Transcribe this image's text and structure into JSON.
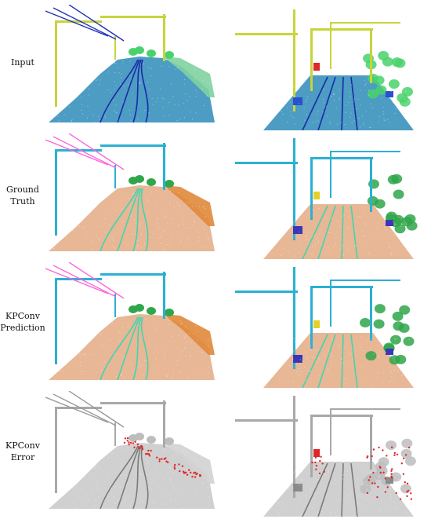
{
  "rows": [
    {
      "label_lines": [
        "Input"
      ],
      "scheme": "input"
    },
    {
      "label_lines": [
        "Ground",
        "Truth"
      ],
      "scheme": "gt"
    },
    {
      "label_lines": [
        "KPConv",
        "Prediction"
      ],
      "scheme": "pred"
    },
    {
      "label_lines": [
        "KPConv",
        "Error"
      ],
      "scheme": "error"
    }
  ],
  "colors": {
    "input": {
      "ground": "#2d8bb8",
      "rail": "#1a2aa8",
      "mast": "#c8d43a",
      "wire": "#2033b8",
      "veg": "#49d26b",
      "wall": "#7fd1a0",
      "sign": "#e0262a",
      "box": "#2a4fd0"
    },
    "gt": {
      "ground": "#e3aa84",
      "rail": "#3fd6b0",
      "mast": "#2bb0d3",
      "wire": "#ff66dd",
      "veg": "#2fa64a",
      "wall": "#e0883a",
      "sign": "#e6cf28",
      "box": "#3b36b8"
    },
    "pred": {
      "ground": "#e3aa84",
      "rail": "#3fd6b0",
      "mast": "#2bb0d3",
      "wire": "#ff66dd",
      "veg": "#2fa64a",
      "wall": "#e0883a",
      "sign": "#e6cf28",
      "box": "#3b36b8"
    },
    "error": {
      "ground": "#c8c8c8",
      "rail": "#7a7a7a",
      "mast": "#a8a8a8",
      "wire": "#9a9a9a",
      "veg": "#bdbdbd",
      "wall": "#d2d2d2",
      "sign": "#e0262a",
      "box": "#8a8a8a",
      "err": "#e0262a"
    }
  }
}
